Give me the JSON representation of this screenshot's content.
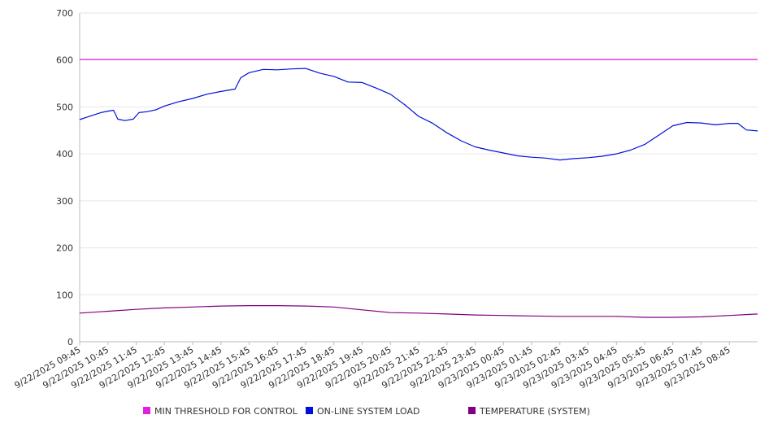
{
  "chart_data": {
    "type": "line",
    "ylim": [
      0,
      700
    ],
    "yticks": [
      0,
      100,
      200,
      300,
      400,
      500,
      600,
      700
    ],
    "grid": true,
    "legend_position": "bottom",
    "x_tick_labels": [
      "9/22/2025 09:45",
      "9/22/2025 10:45",
      "9/22/2025 11:45",
      "9/22/2025 12:45",
      "9/22/2025 13:45",
      "9/22/2025 14:45",
      "9/22/2025 15:45",
      "9/22/2025 16:45",
      "9/22/2025 17:45",
      "9/22/2025 18:45",
      "9/22/2025 19:45",
      "9/22/2025 20:45",
      "9/22/2025 21:45",
      "9/22/2025 22:45",
      "9/22/2025 23:45",
      "9/23/2025 00:45",
      "9/23/2025 01:45",
      "9/23/2025 02:45",
      "9/23/2025 03:45",
      "9/23/2025 04:45",
      "9/23/2025 05:45",
      "9/23/2025 06:45",
      "9/23/2025 07:45",
      "9/23/2025 08:45"
    ],
    "x_hours": [
      0,
      1,
      2,
      3,
      4,
      5,
      6,
      7,
      8,
      9,
      10,
      11,
      12,
      13,
      14,
      15,
      16,
      17,
      18,
      19,
      20,
      21,
      22,
      23
    ],
    "x_range_hours": [
      0,
      24
    ],
    "series": [
      {
        "name": "MIN THRESHOLD FOR CONTROL",
        "color": "#e020e0",
        "points": [
          [
            0,
            601
          ],
          [
            24,
            601
          ]
        ]
      },
      {
        "name": "ON-LINE SYSTEM LOAD",
        "color": "#0010d8",
        "points": [
          [
            0,
            473
          ],
          [
            0.25,
            478
          ],
          [
            0.5,
            483
          ],
          [
            0.75,
            488
          ],
          [
            1,
            491
          ],
          [
            1.2,
            493
          ],
          [
            1.35,
            474
          ],
          [
            1.6,
            471
          ],
          [
            1.9,
            474
          ],
          [
            2.1,
            488
          ],
          [
            2.4,
            490
          ],
          [
            2.7,
            494
          ],
          [
            3,
            502
          ],
          [
            3.5,
            511
          ],
          [
            4,
            518
          ],
          [
            4.5,
            527
          ],
          [
            5,
            533
          ],
          [
            5.5,
            538
          ],
          [
            5.7,
            562
          ],
          [
            6,
            573
          ],
          [
            6.5,
            580
          ],
          [
            7,
            579
          ],
          [
            7.5,
            581
          ],
          [
            8,
            582
          ],
          [
            8.5,
            572
          ],
          [
            9,
            565
          ],
          [
            9.5,
            553
          ],
          [
            10,
            552
          ],
          [
            10.5,
            540
          ],
          [
            11,
            527
          ],
          [
            11.5,
            505
          ],
          [
            12,
            480
          ],
          [
            12.5,
            465
          ],
          [
            13,
            445
          ],
          [
            13.5,
            428
          ],
          [
            14,
            415
          ],
          [
            14.5,
            408
          ],
          [
            15,
            402
          ],
          [
            15.5,
            396
          ],
          [
            16,
            393
          ],
          [
            16.5,
            391
          ],
          [
            17,
            387
          ],
          [
            17.5,
            390
          ],
          [
            18,
            392
          ],
          [
            18.5,
            395
          ],
          [
            19,
            400
          ],
          [
            19.5,
            408
          ],
          [
            20,
            420
          ],
          [
            20.5,
            440
          ],
          [
            21,
            460
          ],
          [
            21.5,
            467
          ],
          [
            22,
            466
          ],
          [
            22.5,
            462
          ],
          [
            23,
            465
          ],
          [
            23.3,
            465
          ],
          [
            23.6,
            451
          ],
          [
            24,
            449
          ]
        ]
      },
      {
        "name": "TEMPERATURE (SYSTEM)",
        "color": "#800080",
        "points": [
          [
            0,
            61
          ],
          [
            1,
            65
          ],
          [
            2,
            69
          ],
          [
            3,
            72
          ],
          [
            4,
            74
          ],
          [
            5,
            76
          ],
          [
            6,
            77
          ],
          [
            7,
            77
          ],
          [
            8,
            76
          ],
          [
            9,
            74
          ],
          [
            10,
            68
          ],
          [
            11,
            62
          ],
          [
            12,
            61
          ],
          [
            13,
            59
          ],
          [
            14,
            57
          ],
          [
            15,
            56
          ],
          [
            16,
            55
          ],
          [
            17,
            54
          ],
          [
            18,
            54
          ],
          [
            19,
            54
          ],
          [
            20,
            52
          ],
          [
            21,
            52
          ],
          [
            22,
            53
          ],
          [
            23,
            56
          ],
          [
            24,
            59
          ]
        ]
      }
    ]
  }
}
